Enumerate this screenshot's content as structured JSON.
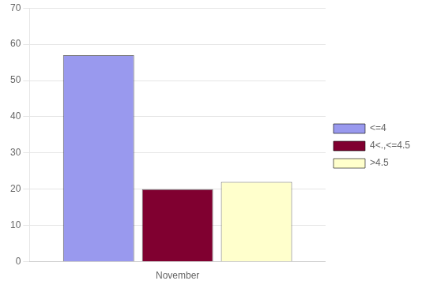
{
  "chart_data": {
    "type": "bar",
    "categories": [
      "November"
    ],
    "series": [
      {
        "name": "<=4",
        "color": "#9999ee",
        "values": [
          57
        ]
      },
      {
        "name": "4<.,<=4.5",
        "color": "#800030",
        "values": [
          20
        ]
      },
      {
        "name": ">4.5",
        "color": "#ffffcc",
        "values": [
          22
        ]
      }
    ],
    "ylim": [
      0,
      70
    ],
    "yticks": [
      0,
      10,
      20,
      30,
      40,
      50,
      60,
      70
    ],
    "grid": true,
    "legend": "right"
  }
}
